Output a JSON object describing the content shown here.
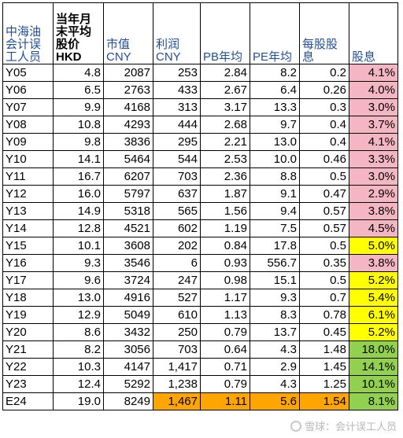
{
  "headers": [
    "中海油会计误工人员",
    "当年月末平均股价HKD",
    "市值CNY",
    "利润CNY",
    "PB年均",
    "PE年均",
    "每股股息",
    "股息"
  ],
  "rows": [
    {
      "label": "Y05",
      "price": "4.8",
      "mcap": "2087",
      "profit": "253",
      "pb": "2.84",
      "pe": "8.2",
      "dps": "0.2",
      "yield": "4.1%",
      "yc": "pink"
    },
    {
      "label": "Y06",
      "price": "6.5",
      "mcap": "2763",
      "profit": "433",
      "pb": "2.67",
      "pe": "6.4",
      "dps": "0.26",
      "yield": "4.0%",
      "yc": "pink"
    },
    {
      "label": "Y07",
      "price": "9.9",
      "mcap": "4168",
      "profit": "313",
      "pb": "3.17",
      "pe": "13.3",
      "dps": "0.3",
      "yield": "3.0%",
      "yc": "pink"
    },
    {
      "label": "Y08",
      "price": "10.8",
      "mcap": "4293",
      "profit": "444",
      "pb": "2.68",
      "pe": "9.7",
      "dps": "0.4",
      "yield": "3.7%",
      "yc": "pink"
    },
    {
      "label": "Y09",
      "price": "9.8",
      "mcap": "3836",
      "profit": "295",
      "pb": "2.21",
      "pe": "13.0",
      "dps": "0.4",
      "yield": "4.1%",
      "yc": "pink"
    },
    {
      "label": "Y10",
      "price": "14.1",
      "mcap": "5464",
      "profit": "544",
      "pb": "2.53",
      "pe": "10.0",
      "dps": "0.46",
      "yield": "3.3%",
      "yc": "pink"
    },
    {
      "label": "Y11",
      "price": "16.7",
      "mcap": "6207",
      "profit": "703",
      "pb": "2.36",
      "pe": "8.8",
      "dps": "0.5",
      "yield": "3.0%",
      "yc": "pink"
    },
    {
      "label": "Y12",
      "price": "16.0",
      "mcap": "5797",
      "profit": "637",
      "pb": "1.87",
      "pe": "9.1",
      "dps": "0.47",
      "yield": "2.9%",
      "yc": "pink"
    },
    {
      "label": "Y13",
      "price": "14.9",
      "mcap": "5318",
      "profit": "565",
      "pb": "1.56",
      "pe": "9.4",
      "dps": "0.57",
      "yield": "3.8%",
      "yc": "pink"
    },
    {
      "label": "Y14",
      "price": "12.8",
      "mcap": "4521",
      "profit": "602",
      "pb": "1.19",
      "pe": "7.5",
      "dps": "0.57",
      "yield": "4.5%",
      "yc": "pink"
    },
    {
      "label": "Y15",
      "price": "10.1",
      "mcap": "3608",
      "profit": "202",
      "pb": "0.84",
      "pe": "17.8",
      "dps": "0.5",
      "yield": "5.0%",
      "yc": "yellow"
    },
    {
      "label": "Y16",
      "price": "9.3",
      "mcap": "3546",
      "profit": "6",
      "pb": "0.93",
      "pe": "556.7",
      "dps": "0.35",
      "yield": "3.8%",
      "yc": "pink"
    },
    {
      "label": "Y17",
      "price": "9.6",
      "mcap": "3724",
      "profit": "247",
      "pb": "0.98",
      "pe": "15.1",
      "dps": "0.5",
      "yield": "5.2%",
      "yc": "yellow"
    },
    {
      "label": "Y18",
      "price": "13.0",
      "mcap": "4916",
      "profit": "527",
      "pb": "1.17",
      "pe": "9.3",
      "dps": "0.7",
      "yield": "5.4%",
      "yc": "yellow"
    },
    {
      "label": "Y19",
      "price": "12.9",
      "mcap": "5049",
      "profit": "610",
      "pb": "1.13",
      "pe": "8.3",
      "dps": "0.78",
      "yield": "6.1%",
      "yc": "yellow"
    },
    {
      "label": "Y20",
      "price": "8.6",
      "mcap": "3432",
      "profit": "250",
      "pb": "0.79",
      "pe": "13.7",
      "dps": "0.45",
      "yield": "5.2%",
      "yc": "yellow"
    },
    {
      "label": "Y21",
      "price": "8.2",
      "mcap": "3056",
      "profit": "703",
      "pb": "0.64",
      "pe": "4.3",
      "dps": "1.48",
      "yield": "18.0%",
      "yc": "green"
    },
    {
      "label": "Y22",
      "price": "10.3",
      "mcap": "4147",
      "profit": "1,417",
      "pb": "0.71",
      "pe": "2.9",
      "dps": "1.45",
      "yield": "14.1%",
      "yc": "green"
    },
    {
      "label": "Y23",
      "price": "12.4",
      "mcap": "5292",
      "profit": "1,238",
      "pb": "0.79",
      "pe": "4.3",
      "dps": "1.25",
      "yield": "10.1%",
      "yc": "green"
    },
    {
      "label": "E24",
      "price": "19.0",
      "mcap": "8249",
      "profit": "1,467",
      "pb": "1.11",
      "pe": "5.6",
      "dps": "1.54",
      "yield": "8.1%",
      "yc": "green",
      "estimate": true
    }
  ],
  "colors": {
    "pink": "#f4b6c2",
    "yellow": "#ffff00",
    "green": "#92d050",
    "orange": "#ffa500"
  },
  "watermark": {
    "icon": "snowball-icon",
    "text": "雪球：会计误工人员"
  }
}
